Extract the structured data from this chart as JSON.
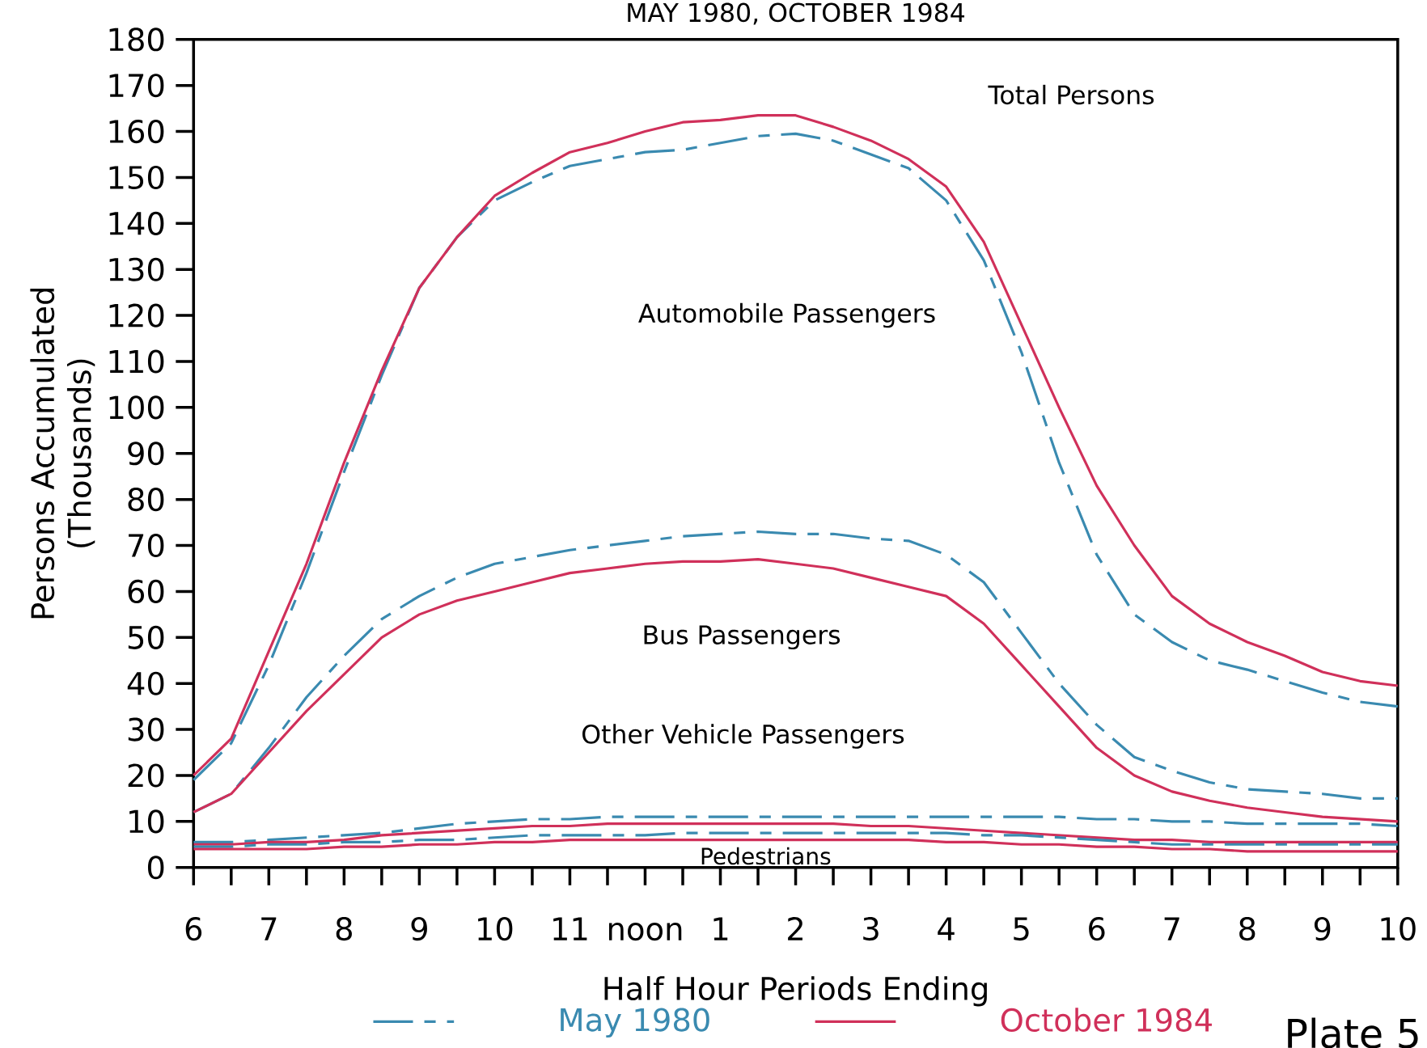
{
  "chart_data": {
    "type": "line",
    "title": "MAY 1980, OCTOBER 1984",
    "xlabel": "Half Hour Periods Ending",
    "ylabel": "Persons Accumulated (Thousands)",
    "categories": [
      "6",
      null,
      "7",
      null,
      "8",
      null,
      "9",
      null,
      "10",
      null,
      "11",
      null,
      "noon",
      null,
      "1",
      null,
      "2",
      null,
      "3",
      null,
      "4",
      null,
      "5",
      null,
      "6",
      null,
      "7",
      null,
      "8",
      null,
      "9",
      null,
      "10"
    ],
    "ylim": [
      0,
      180
    ],
    "yticks": [
      0,
      10,
      20,
      30,
      40,
      50,
      60,
      70,
      80,
      90,
      100,
      110,
      120,
      130,
      140,
      150,
      160,
      170,
      180
    ],
    "legend": "bottom",
    "marker": "none",
    "series": [
      {
        "name": "May 1980",
        "color": "#3a8ab0",
        "line_style": "dashed",
        "values": [
          19,
          27,
          44,
          64,
          86,
          107,
          126,
          137,
          145,
          149,
          152.5,
          154,
          155.5,
          156,
          157.5,
          159,
          159.5,
          158,
          155,
          152,
          145,
          132,
          112,
          88,
          68,
          55,
          49,
          45,
          43,
          40.5,
          38,
          36,
          35
        ]
      },
      {
        "name": "October 1984",
        "color": "#d0305a",
        "line_style": "solid",
        "values": [
          20,
          28,
          47,
          66,
          88,
          108,
          126,
          137,
          146,
          151,
          155.5,
          157.5,
          160,
          162,
          162.5,
          163.5,
          163.5,
          161,
          158,
          154,
          148,
          136,
          118,
          100,
          83,
          70,
          59,
          53,
          49,
          46,
          42.5,
          40.5,
          39.5
        ]
      },
      {
        "color": "#3a8ab0",
        "line_style": "dashed",
        "values": [
          12,
          16,
          26,
          37,
          46,
          54,
          59,
          63,
          66,
          67.5,
          69,
          70,
          71,
          72,
          72.5,
          73,
          72.5,
          72.5,
          71.5,
          71,
          68,
          62,
          51,
          40,
          31,
          24,
          21,
          18.5,
          17,
          16.5,
          16,
          15,
          15
        ]
      },
      {
        "color": "#d0305a",
        "line_style": "solid",
        "values": [
          12,
          16,
          25,
          34,
          42,
          50,
          55,
          58,
          60,
          62,
          64,
          65,
          66,
          66.5,
          66.5,
          67,
          66,
          65,
          63,
          61,
          59,
          53,
          44,
          35,
          26,
          20,
          16.5,
          14.5,
          13,
          12,
          11,
          10.5,
          10
        ]
      },
      {
        "color": "#3a8ab0",
        "line_style": "dashed",
        "values": [
          5.5,
          5.5,
          6,
          6.5,
          7,
          7.5,
          8.5,
          9.5,
          10,
          10.5,
          10.5,
          11,
          11,
          11,
          11,
          11,
          11,
          11,
          11,
          11,
          11,
          11,
          11,
          11,
          10.5,
          10.5,
          10,
          10,
          9.5,
          9.5,
          9.5,
          9.5,
          9
        ]
      },
      {
        "color": "#d0305a",
        "line_style": "solid",
        "values": [
          5,
          5,
          5.5,
          5.5,
          6,
          7,
          7.5,
          8,
          8.5,
          9,
          9,
          9.5,
          9.5,
          9.5,
          9.5,
          9.5,
          9.5,
          9.5,
          9,
          9,
          8.5,
          8,
          7.5,
          7,
          6.5,
          6,
          6,
          5.5,
          5.5,
          5.5,
          5.5,
          5.5,
          5.5
        ]
      },
      {
        "color": "#3a8ab0",
        "line_style": "dashed",
        "values": [
          4.5,
          4.5,
          5,
          5,
          5.5,
          5.5,
          6,
          6,
          6.5,
          7,
          7,
          7,
          7,
          7.5,
          7.5,
          7.5,
          7.5,
          7.5,
          7.5,
          7.5,
          7.5,
          7,
          7,
          6.5,
          6,
          5.5,
          5,
          5,
          5,
          5,
          5,
          5,
          5
        ]
      },
      {
        "color": "#d0305a",
        "line_style": "solid",
        "values": [
          4,
          4,
          4,
          4,
          4.5,
          4.5,
          5,
          5,
          5.5,
          5.5,
          6,
          6,
          6,
          6,
          6,
          6,
          6,
          6,
          6,
          6,
          5.5,
          5.5,
          5,
          5,
          4.5,
          4.5,
          4,
          4,
          3.5,
          3.5,
          3.5,
          3.5,
          3.5
        ]
      }
    ],
    "annotations": [
      "Total Persons",
      "Automobile Passengers",
      "Bus Passengers",
      "Other Vehicle Passengers",
      "Pedestrians",
      "Plate 5"
    ]
  }
}
